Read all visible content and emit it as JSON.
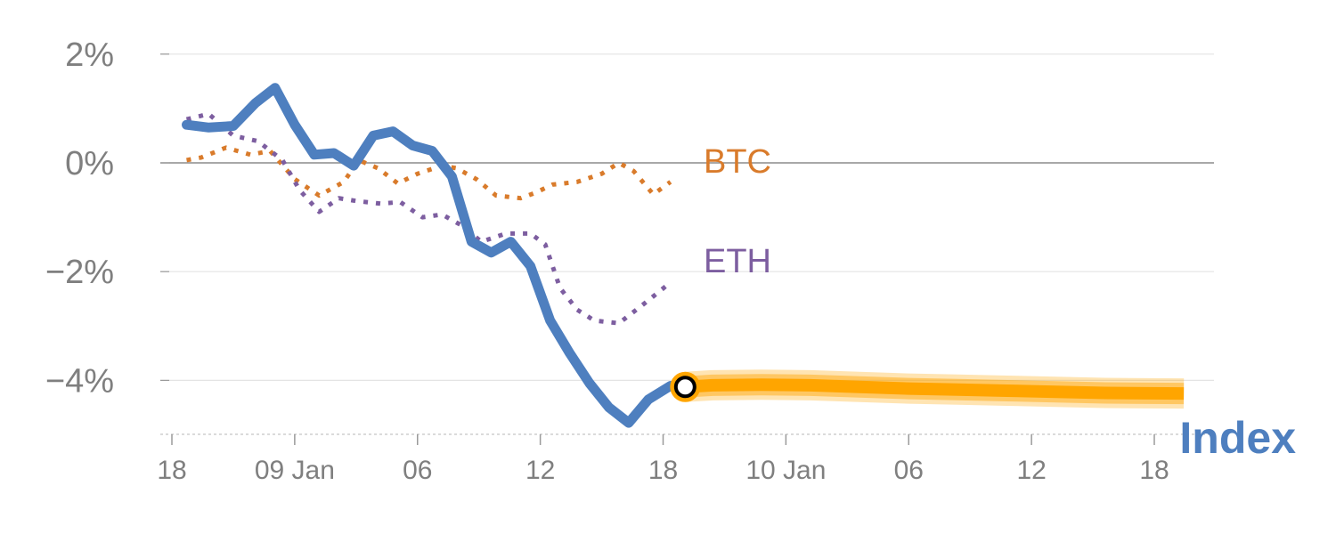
{
  "chart_data": {
    "type": "line",
    "ylim": [
      -5,
      2
    ],
    "yticks": [
      {
        "value": 2,
        "label": "2%"
      },
      {
        "value": 0,
        "label": "0%"
      },
      {
        "value": -2,
        "label": "−2%"
      },
      {
        "value": -4,
        "label": "−4%"
      }
    ],
    "xlim": [
      0,
      42
    ],
    "xticks": [
      {
        "x": 0,
        "label": "18"
      },
      {
        "x": 5,
        "label": "09 Jan"
      },
      {
        "x": 10,
        "label": "06"
      },
      {
        "x": 15,
        "label": "12"
      },
      {
        "x": 20,
        "label": "18"
      },
      {
        "x": 25,
        "label": "10 Jan"
      },
      {
        "x": 30,
        "label": "06"
      },
      {
        "x": 35,
        "label": "12"
      },
      {
        "x": 40,
        "label": "18"
      }
    ],
    "series": [
      {
        "name": "BTC",
        "label": "BTC",
        "color": "#d97b2b",
        "style": "dotted",
        "points": [
          [
            0.6,
            0.05
          ],
          [
            1.2,
            0.1
          ],
          [
            2.2,
            0.28
          ],
          [
            3.2,
            0.15
          ],
          [
            4,
            0.22
          ],
          [
            5,
            -0.3
          ],
          [
            6,
            -0.6
          ],
          [
            7,
            -0.35
          ],
          [
            7.6,
            0.05
          ],
          [
            8.4,
            -0.1
          ],
          [
            9.2,
            -0.38
          ],
          [
            10,
            -0.2
          ],
          [
            11,
            -0.05
          ],
          [
            11.6,
            -0.1
          ],
          [
            12.4,
            -0.3
          ],
          [
            13.2,
            -0.6
          ],
          [
            14.2,
            -0.65
          ],
          [
            14.8,
            -0.55
          ],
          [
            15.5,
            -0.4
          ],
          [
            16.5,
            -0.35
          ],
          [
            17.5,
            -0.2
          ],
          [
            18.2,
            0.0
          ],
          [
            18.8,
            -0.15
          ],
          [
            19.6,
            -0.58
          ],
          [
            20.3,
            -0.35
          ]
        ]
      },
      {
        "name": "ETH",
        "label": "ETH",
        "color": "#7d5ea0",
        "style": "dotted",
        "points": [
          [
            0.6,
            0.8
          ],
          [
            1.5,
            0.9
          ],
          [
            2.5,
            0.5
          ],
          [
            3.5,
            0.4
          ],
          [
            4.5,
            0.05
          ],
          [
            5.2,
            -0.5
          ],
          [
            6,
            -0.9
          ],
          [
            6.8,
            -0.65
          ],
          [
            7.5,
            -0.7
          ],
          [
            8.5,
            -0.75
          ],
          [
            9.3,
            -0.72
          ],
          [
            10.2,
            -1.0
          ],
          [
            11,
            -0.95
          ],
          [
            11.8,
            -1.15
          ],
          [
            12.6,
            -1.45
          ],
          [
            13.6,
            -1.3
          ],
          [
            14.6,
            -1.3
          ],
          [
            15.2,
            -1.5
          ],
          [
            15.8,
            -2.3
          ],
          [
            16.5,
            -2.7
          ],
          [
            17.2,
            -2.9
          ],
          [
            18.2,
            -2.95
          ],
          [
            19.2,
            -2.6
          ],
          [
            20.3,
            -2.2
          ]
        ]
      },
      {
        "name": "Index",
        "label": "Index",
        "color": "#4e7fbf",
        "style": "solid",
        "points": [
          [
            0.6,
            0.7
          ],
          [
            1.5,
            0.65
          ],
          [
            2.5,
            0.68
          ],
          [
            3.4,
            1.1
          ],
          [
            4.2,
            1.38
          ],
          [
            5,
            0.7
          ],
          [
            5.8,
            0.15
          ],
          [
            6.6,
            0.18
          ],
          [
            7.4,
            -0.05
          ],
          [
            8.2,
            0.5
          ],
          [
            9,
            0.58
          ],
          [
            9.8,
            0.32
          ],
          [
            10.6,
            0.22
          ],
          [
            11.4,
            -0.25
          ],
          [
            12.2,
            -1.45
          ],
          [
            13,
            -1.65
          ],
          [
            13.8,
            -1.45
          ],
          [
            14.6,
            -1.9
          ],
          [
            15.4,
            -2.9
          ],
          [
            16.2,
            -3.5
          ],
          [
            17,
            -4.05
          ],
          [
            17.8,
            -4.5
          ],
          [
            18.6,
            -4.78
          ],
          [
            19.4,
            -4.35
          ],
          [
            20.3,
            -4.1
          ]
        ]
      }
    ],
    "forecast": {
      "color": "#ffa500",
      "points": [
        [
          20.9,
          -4.12
        ],
        [
          22,
          -4.09
        ],
        [
          24,
          -4.08
        ],
        [
          26,
          -4.09
        ],
        [
          28,
          -4.12
        ],
        [
          30,
          -4.15
        ],
        [
          32,
          -4.17
        ],
        [
          34,
          -4.19
        ],
        [
          36,
          -4.21
        ],
        [
          38,
          -4.23
        ],
        [
          41.2,
          -4.24
        ]
      ]
    },
    "marker": {
      "x": 20.9,
      "y": -4.12,
      "ring_color": "#ffa500"
    }
  }
}
